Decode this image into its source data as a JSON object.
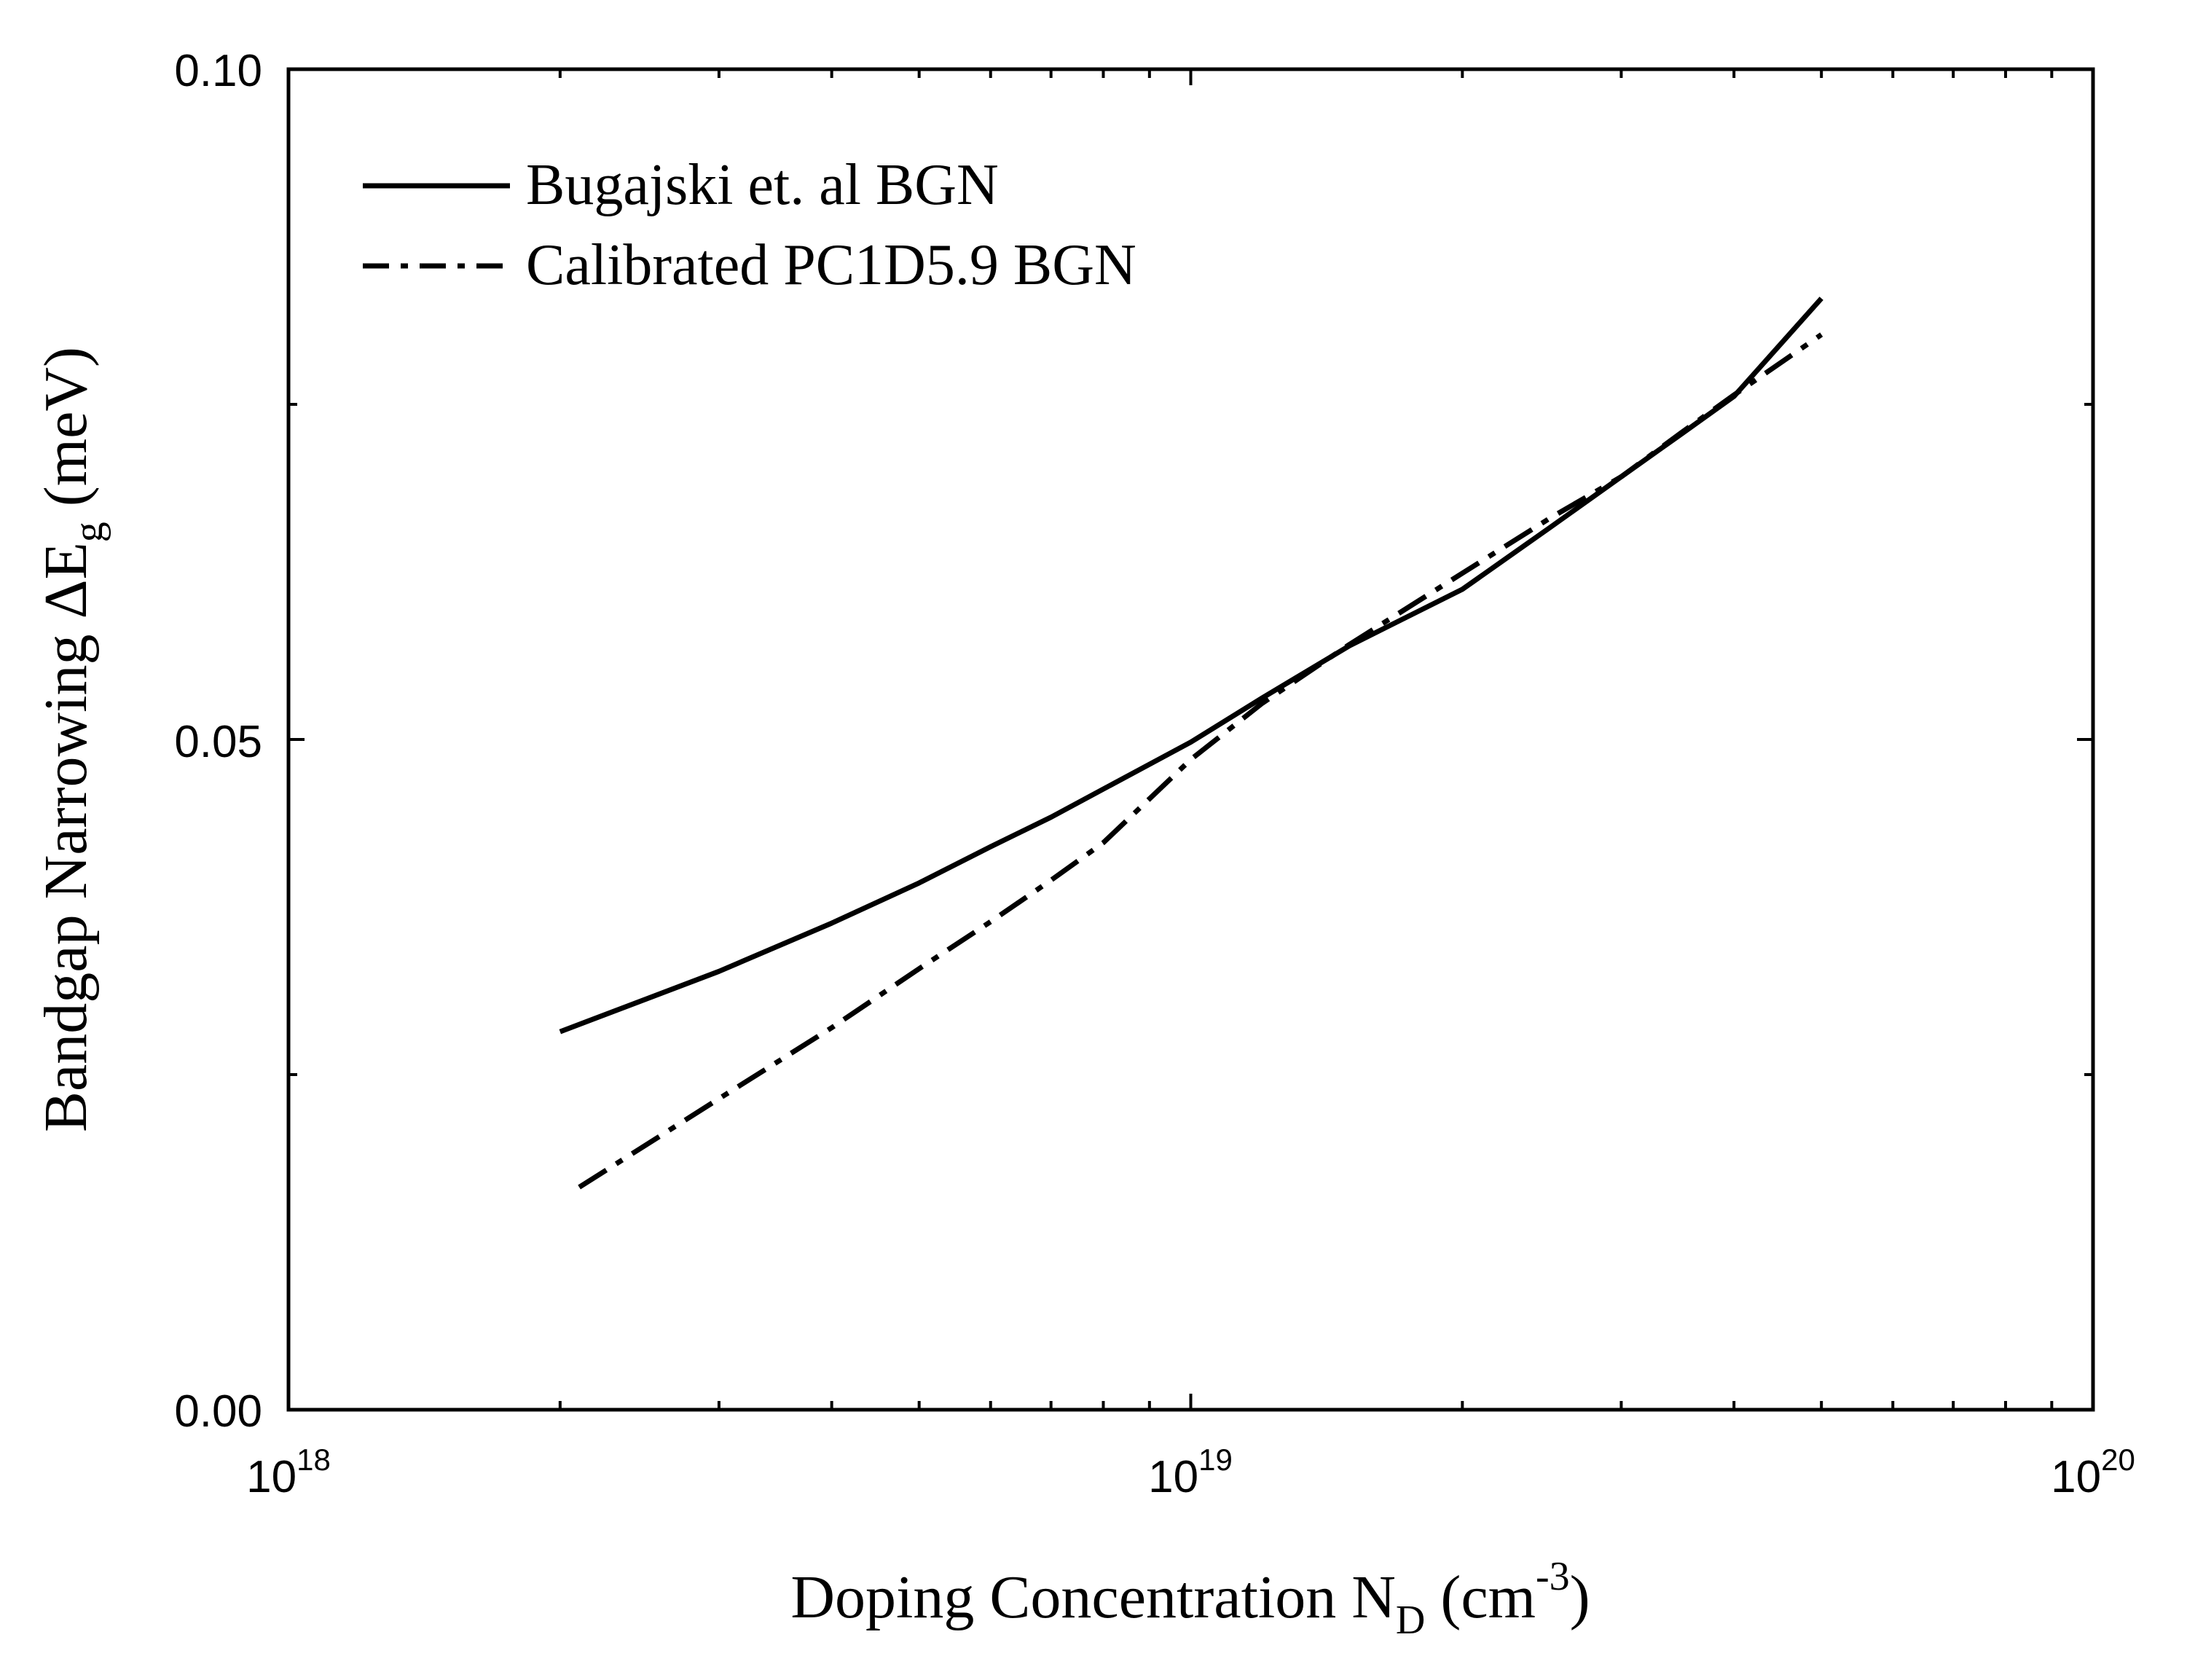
{
  "chart_data": {
    "type": "line",
    "title": "",
    "xlabel": {
      "main": "Doping Concentration N",
      "sub": "D",
      "unit_open": " (cm",
      "unit_sup": "-3",
      "unit_close": ")"
    },
    "ylabel": {
      "main": "Bandgap Narrowing ΔE",
      "sub": "g",
      "unit": " (meV)"
    },
    "x_scale": "log",
    "xlim": [
      1e+18,
      1e+20
    ],
    "ylim": [
      0.0,
      0.1
    ],
    "x_ticks": [
      {
        "value": 1e+18,
        "base": "10",
        "exp": "18"
      },
      {
        "value": 1e+19,
        "base": "10",
        "exp": "19"
      },
      {
        "value": 1e+20,
        "base": "10",
        "exp": "20"
      }
    ],
    "y_ticks": [
      {
        "value": 0.0,
        "label": "0.00"
      },
      {
        "value": 0.05,
        "label": "0.05"
      },
      {
        "value": 0.1,
        "label": "0.10"
      }
    ],
    "y_minor_ticks": [
      0.025,
      0.075
    ],
    "grid": false,
    "legend_position": "top-left",
    "series": [
      {
        "name": "Bugajski et. al BGN",
        "style": "solid",
        "x": [
          2e+18,
          3e+18,
          4e+18,
          5e+18,
          6e+18,
          7e+18,
          8e+18,
          1e+19,
          1.2e+19,
          1.5e+19,
          2e+19,
          2.5e+19,
          3e+19,
          3.5e+19,
          4e+19,
          5e+19
        ],
        "y": [
          0.0282,
          0.0327,
          0.0363,
          0.0393,
          0.042,
          0.0442,
          0.0463,
          0.0498,
          0.0531,
          0.057,
          0.0612,
          0.0658,
          0.0696,
          0.0728,
          0.0756,
          0.0829
        ]
      },
      {
        "name": "Calibrated PC1D5.9 BGN",
        "style": "dashdot",
        "x": [
          2.1e+18,
          3e+18,
          4e+18,
          5e+18,
          6e+18,
          7e+18,
          8e+18,
          1e+19,
          1.2e+19,
          1.5e+19,
          2e+19,
          2.5e+19,
          3e+19,
          3.5e+19,
          4e+19,
          5e+19
        ],
        "y": [
          0.0166,
          0.0232,
          0.0285,
          0.0329,
          0.0364,
          0.0395,
          0.0423,
          0.0485,
          0.0527,
          0.0571,
          0.0624,
          0.0665,
          0.0696,
          0.0729,
          0.0757,
          0.0802
        ]
      }
    ]
  }
}
